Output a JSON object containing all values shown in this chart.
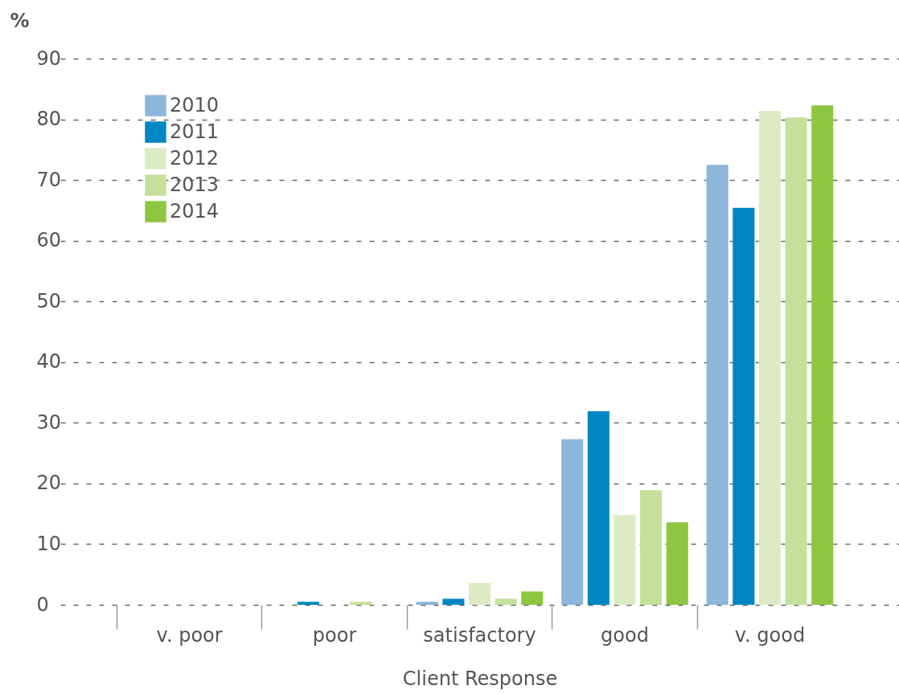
{
  "chart_data": {
    "type": "bar",
    "ylabel": "%",
    "xlabel": "Client Response",
    "categories": [
      "v. poor",
      "poor",
      "satisfactory",
      "good",
      "v. good"
    ],
    "series": [
      {
        "name": "2010",
        "color": "#8cb6dc",
        "values": [
          0,
          0,
          0.5,
          27.3,
          72.5
        ]
      },
      {
        "name": "2011",
        "color": "#0086c3",
        "values": [
          0,
          0.5,
          1.0,
          31.9,
          65.4
        ]
      },
      {
        "name": "2012",
        "color": "#dcebc4",
        "values": [
          0,
          0,
          3.6,
          14.8,
          81.4
        ]
      },
      {
        "name": "2013",
        "color": "#c5e09b",
        "values": [
          0,
          0.5,
          1.0,
          18.9,
          80.3
        ]
      },
      {
        "name": "2014",
        "color": "#8dc63f",
        "values": [
          0,
          0,
          2.2,
          13.6,
          82.3
        ]
      }
    ],
    "ylim": [
      0,
      90
    ],
    "yticks": [
      0,
      10,
      20,
      30,
      40,
      50,
      60,
      70,
      80,
      90
    ],
    "grid": "y",
    "legend": "top left"
  }
}
